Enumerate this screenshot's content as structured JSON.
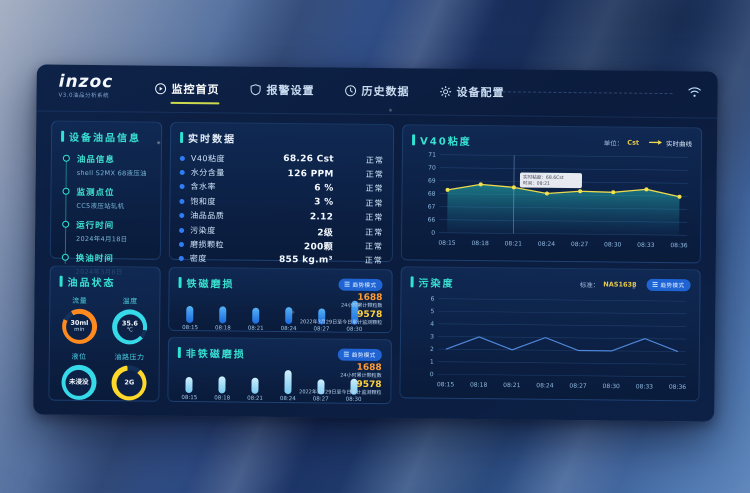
{
  "brand": {
    "logo": "inzoc",
    "subtitle": "V3.0油品分析系统"
  },
  "nav": {
    "items": [
      {
        "label": "监控首页",
        "active": true
      },
      {
        "label": "报警设置",
        "active": false
      },
      {
        "label": "历史数据",
        "active": false
      },
      {
        "label": "设备配置",
        "active": false
      }
    ]
  },
  "device_info": {
    "title": "设备油品信息",
    "items": [
      {
        "label": "油品信息",
        "value": "shell S2MX 68液压油"
      },
      {
        "label": "监测点位",
        "value": "CC5液压站轧机"
      },
      {
        "label": "运行时间",
        "value": "2024年4月18日"
      },
      {
        "label": "换油时间",
        "value": "2024年3月8日"
      }
    ]
  },
  "realtime": {
    "title": "实时数据",
    "rows": [
      {
        "label": "V40粘度",
        "value": "68.26 Cst",
        "status": "正常"
      },
      {
        "label": "水分含量",
        "value": "126 PPM",
        "status": "正常"
      },
      {
        "label": "含水率",
        "value": "6 %",
        "status": "正常"
      },
      {
        "label": "饱和度",
        "value": "3 %",
        "status": "正常"
      },
      {
        "label": "油品品质",
        "value": "2.12",
        "status": "正常"
      },
      {
        "label": "污染度",
        "value": "2级",
        "status": "正常"
      },
      {
        "label": "磨损颗粒",
        "value": "200颗",
        "status": "正常"
      },
      {
        "label": "密度",
        "value": "855 kg.m³",
        "status": "正常"
      }
    ]
  },
  "oil_status": {
    "title": "油品状态",
    "gauges": [
      {
        "label": "流量",
        "line1": "30ml",
        "line2": "min",
        "color": "#ff8a1e",
        "pct": 90,
        "start": -30
      },
      {
        "label": "温度",
        "line1": "35.6",
        "line2": "℃",
        "color": "#36d9e8",
        "pct": 92,
        "start": 130
      },
      {
        "label": "液位",
        "line1": "未浸没",
        "line2": "",
        "color": "#36d9e8",
        "pct": 100,
        "start": 0
      },
      {
        "label": "油路压力",
        "line1": "2G",
        "line2": "",
        "color": "#ffd829",
        "pct": 87,
        "start": 40
      }
    ]
  },
  "ferro": {
    "title": "铁磁磨损",
    "badge": "趋势模式",
    "stats": [
      {
        "value": "1688",
        "label": "24小时累计颗粒数"
      },
      {
        "value": "9578",
        "label": "2022年3月29日至今日累计监测颗粒"
      }
    ]
  },
  "nonferro": {
    "title": "非铁磁磨损",
    "badge": "趋势模式",
    "stats": [
      {
        "value": "1688",
        "label": "24小时累计颗粒数"
      },
      {
        "value": "9578",
        "label": "2022年3月29日至今日累计监测颗粒"
      }
    ]
  },
  "viscosity": {
    "title": "V40粘度",
    "unit_label": "单位：",
    "unit": "Cst",
    "legend": "实时曲线",
    "tooltip": {
      "line1": "实时粘度：68.6Cst",
      "line2": "时间：08:21"
    }
  },
  "contamination": {
    "title": "污染度",
    "std_label": "标准：",
    "std": "NAS1638",
    "badge": "趋势模式"
  },
  "chart_data": [
    {
      "id": "viscosity",
      "type": "line",
      "x": [
        "08:15",
        "08:18",
        "08:21",
        "08:24",
        "08:27",
        "08:30",
        "08:33",
        "08:36"
      ],
      "values": [
        68.3,
        68.75,
        68.55,
        68.1,
        68.3,
        68.25,
        68.5,
        67.95
      ],
      "yticks": [
        "71",
        "70",
        "69",
        "68",
        "67",
        "66",
        "0"
      ],
      "ylim": [
        66,
        71
      ],
      "line_color": "#ecd94f",
      "area": true,
      "crosshair_index": 2,
      "title": "V40粘度",
      "ylabel": "Cst",
      "legend": "实时曲线"
    },
    {
      "id": "contamination",
      "type": "line",
      "x": [
        "08:15",
        "08:18",
        "08:21",
        "08:24",
        "08:27",
        "08:30",
        "08:33",
        "08:36"
      ],
      "values": [
        2,
        3,
        2,
        3,
        2,
        2,
        3,
        2
      ],
      "yticks": [
        "6",
        "5",
        "4",
        "3",
        "2",
        "1",
        "0"
      ],
      "ylim": [
        0,
        6
      ],
      "line_color": "#4f86d8",
      "area": false,
      "title": "污染度"
    },
    {
      "id": "ferro",
      "type": "bar",
      "categories": [
        "08:15",
        "08:18",
        "08:21",
        "08:24",
        "08:27",
        "08:30"
      ],
      "values": [
        62,
        62,
        58,
        62,
        58,
        88
      ],
      "title": "铁磁磨损"
    },
    {
      "id": "nonferro",
      "type": "bar",
      "categories": [
        "08:15",
        "08:18",
        "08:21",
        "08:24",
        "08:27",
        "08:30"
      ],
      "values": [
        60,
        62,
        60,
        90,
        56,
        60
      ],
      "title": "非铁磁磨损"
    }
  ]
}
